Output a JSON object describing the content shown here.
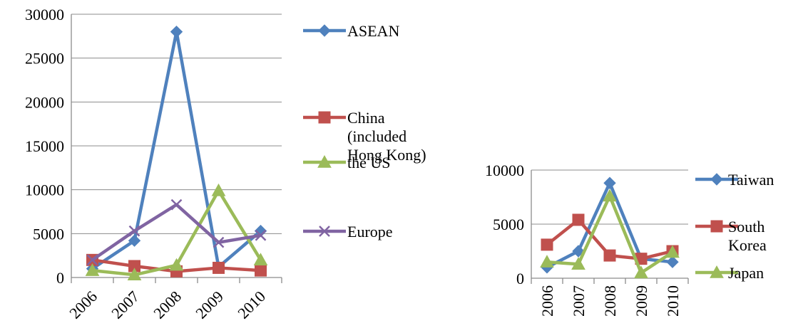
{
  "chart_data": [
    {
      "type": "line",
      "title": "",
      "xlabel": "",
      "ylabel": "",
      "categories": [
        "2006",
        "2007",
        "2008",
        "2009",
        "2010"
      ],
      "ylim": [
        0,
        30000
      ],
      "yticks": [
        "0",
        "5000",
        "10000",
        "15000",
        "20000",
        "25000",
        "30000"
      ],
      "grid": "horizontal",
      "legend_position": "right",
      "series": [
        {
          "name": "ASEAN",
          "values": [
            1000,
            4200,
            28000,
            1200,
            5300
          ],
          "color": "#4f81bd",
          "marker": "diamond"
        },
        {
          "name": "China (included Hong Kong)",
          "legend_lines": [
            "China",
            "(included",
            "Hong Kong)"
          ],
          "values": [
            2000,
            1300,
            700,
            1100,
            800
          ],
          "color": "#c0504d",
          "marker": "square"
        },
        {
          "name": "the US",
          "values": [
            800,
            300,
            1400,
            9900,
            2000
          ],
          "color": "#9bbb59",
          "marker": "triangle"
        },
        {
          "name": "Europe",
          "values": [
            2000,
            5300,
            8300,
            4000,
            4800
          ],
          "color": "#8064a2",
          "marker": "x"
        }
      ]
    },
    {
      "type": "line",
      "title": "",
      "xlabel": "",
      "ylabel": "",
      "categories": [
        "2006",
        "2007",
        "2008",
        "2009",
        "2010"
      ],
      "ylim": [
        0,
        10000
      ],
      "yticks": [
        "0",
        "5000",
        "10000"
      ],
      "grid": "horizontal",
      "legend_position": "right",
      "series": [
        {
          "name": "Taiwan",
          "values": [
            1000,
            2500,
            8800,
            1800,
            1500
          ],
          "color": "#4f81bd",
          "marker": "diamond"
        },
        {
          "name": "South Korea",
          "legend_lines": [
            "South",
            "Korea"
          ],
          "values": [
            3100,
            5400,
            2100,
            1800,
            2500
          ],
          "color": "#c0504d",
          "marker": "square"
        },
        {
          "name": "Japan",
          "values": [
            1500,
            1300,
            7600,
            500,
            2400
          ],
          "color": "#9bbb59",
          "marker": "triangle"
        }
      ]
    }
  ]
}
